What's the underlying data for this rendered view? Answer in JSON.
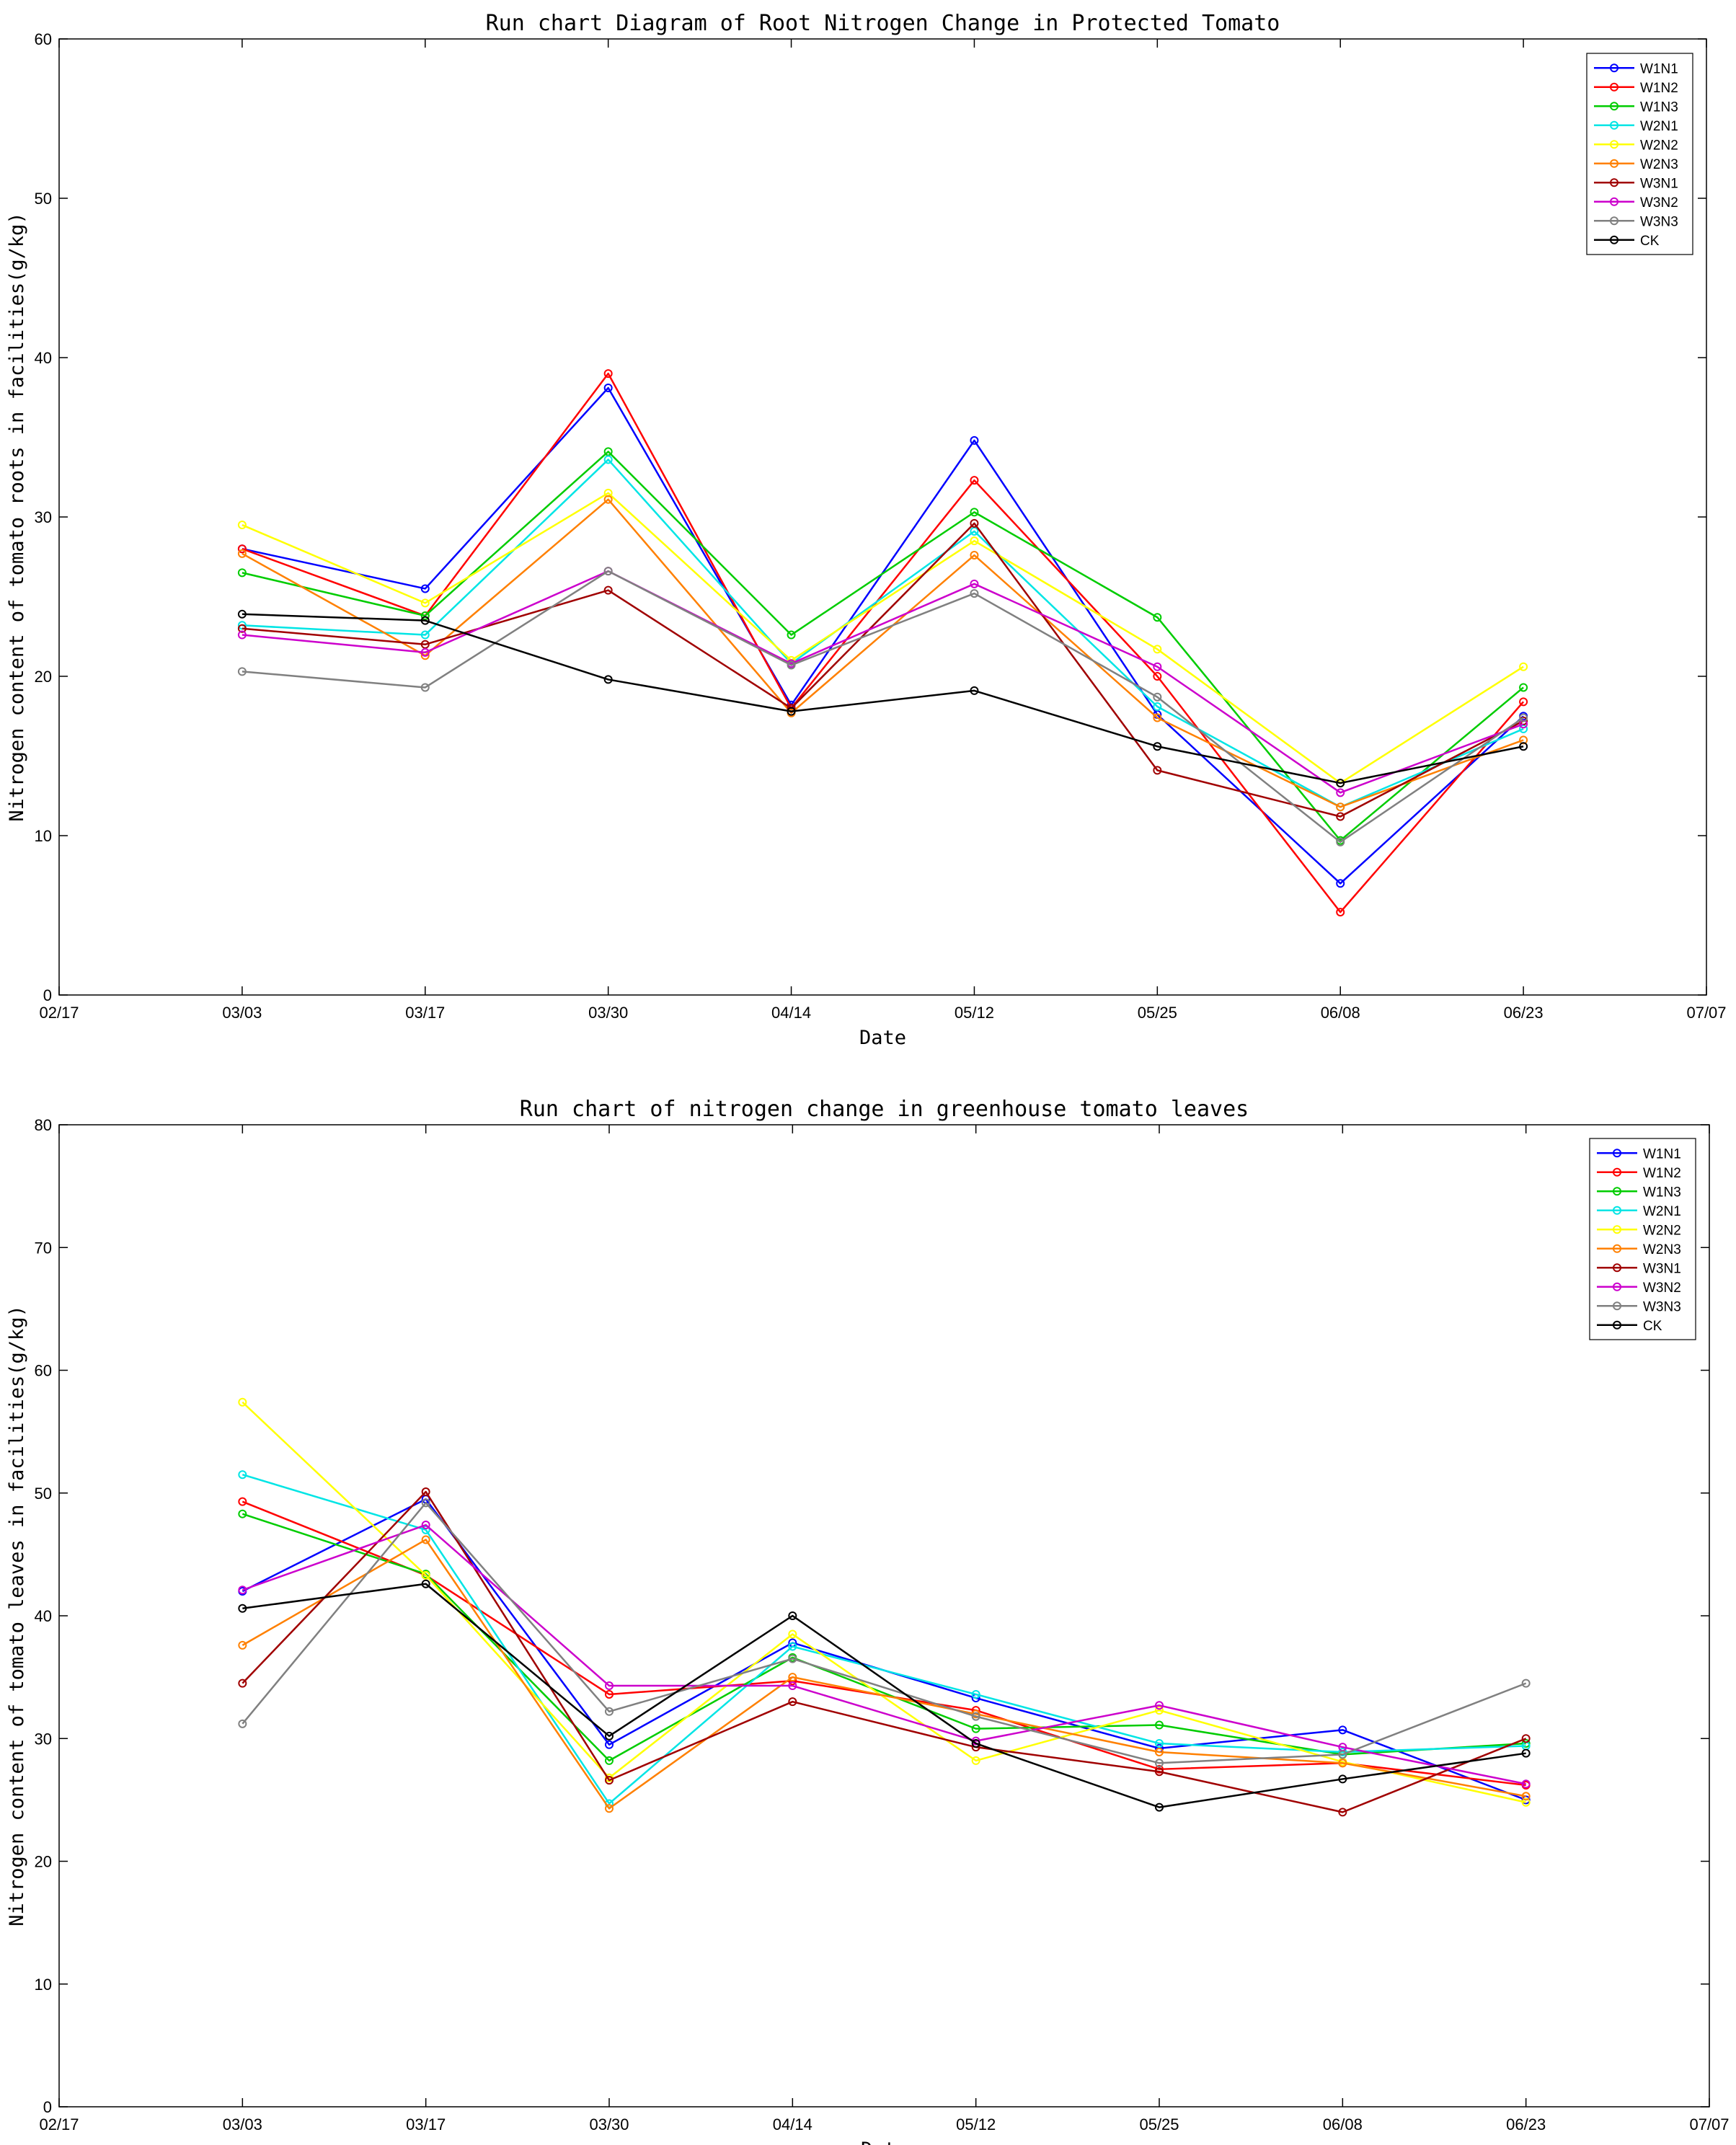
{
  "chart_data": [
    {
      "type": "line",
      "title": "Run chart Diagram of Root Nitrogen Change in Protected Tomato",
      "xlabel": "Date",
      "ylabel": "Nitrogen content of tomato roots in facilities(g/kg)",
      "x_ticks": [
        "02/17",
        "03/03",
        "03/17",
        "03/30",
        "04/14",
        "05/12",
        "05/25",
        "06/08",
        "06/23",
        "07/07"
      ],
      "categories": [
        "03/03",
        "03/17",
        "03/30",
        "04/14",
        "05/12",
        "05/25",
        "06/08",
        "06/23"
      ],
      "ylim": [
        0,
        60
      ],
      "y_ticks": [
        0,
        10,
        20,
        30,
        40,
        50,
        60
      ],
      "legend_position": "top-right",
      "series": [
        {
          "name": "W1N1",
          "color": "#0000FF",
          "values": [
            28.0,
            25.5,
            38.1,
            18.2,
            34.8,
            17.6,
            7.0,
            17.5
          ]
        },
        {
          "name": "W1N2",
          "color": "#FF0000",
          "values": [
            28.0,
            23.8,
            39.0,
            18.0,
            32.3,
            20.0,
            5.2,
            18.4
          ]
        },
        {
          "name": "W1N3",
          "color": "#00CC00",
          "values": [
            26.5,
            23.8,
            34.1,
            22.6,
            30.3,
            23.7,
            9.7,
            19.3
          ]
        },
        {
          "name": "W2N1",
          "color": "#00E5E5",
          "values": [
            23.2,
            22.6,
            33.6,
            20.8,
            29.1,
            18.1,
            11.8,
            16.7
          ]
        },
        {
          "name": "W2N2",
          "color": "#FFFF00",
          "values": [
            29.5,
            24.6,
            31.5,
            21.0,
            28.5,
            21.7,
            13.3,
            20.6
          ]
        },
        {
          "name": "W2N3",
          "color": "#FF8000",
          "values": [
            27.7,
            21.3,
            31.1,
            17.7,
            27.6,
            17.4,
            11.8,
            16.0
          ]
        },
        {
          "name": "W3N1",
          "color": "#A00000",
          "values": [
            23.0,
            22.0,
            25.4,
            18.0,
            29.6,
            14.1,
            11.2,
            17.2
          ]
        },
        {
          "name": "W3N2",
          "color": "#CC00CC",
          "values": [
            22.6,
            21.5,
            26.6,
            20.8,
            25.8,
            20.6,
            12.7,
            17.0
          ]
        },
        {
          "name": "W3N3",
          "color": "#808080",
          "values": [
            20.3,
            19.3,
            26.6,
            20.7,
            25.2,
            18.7,
            9.6,
            17.4
          ]
        },
        {
          "name": "CK",
          "color": "#000000",
          "values": [
            23.9,
            23.5,
            19.8,
            17.8,
            19.1,
            15.6,
            13.3,
            15.6
          ]
        }
      ]
    },
    {
      "type": "line",
      "title": "Run chart of nitrogen change in greenhouse tomato leaves",
      "xlabel": "Date",
      "ylabel": "Nitrogen content of tomato leaves in facilities(g/kg)",
      "x_ticks": [
        "02/17",
        "03/03",
        "03/17",
        "03/30",
        "04/14",
        "05/12",
        "05/25",
        "06/08",
        "06/23",
        "07/07"
      ],
      "categories": [
        "03/03",
        "03/17",
        "03/30",
        "04/14",
        "05/12",
        "05/25",
        "06/08",
        "06/23"
      ],
      "ylim": [
        0,
        80
      ],
      "y_ticks": [
        0,
        10,
        20,
        30,
        40,
        50,
        60,
        70,
        80
      ],
      "legend_position": "top-right",
      "series": [
        {
          "name": "W1N1",
          "color": "#0000FF",
          "values": [
            42.0,
            49.5,
            29.5,
            37.8,
            33.3,
            29.2,
            30.7,
            25.0
          ]
        },
        {
          "name": "W1N2",
          "color": "#FF0000",
          "values": [
            49.3,
            43.3,
            33.6,
            34.7,
            32.3,
            27.5,
            28.0,
            26.2
          ]
        },
        {
          "name": "W1N3",
          "color": "#00CC00",
          "values": [
            48.3,
            43.4,
            28.2,
            36.6,
            30.8,
            31.1,
            28.7,
            29.6
          ]
        },
        {
          "name": "W2N1",
          "color": "#00E5E5",
          "values": [
            51.5,
            47.0,
            24.7,
            37.5,
            33.6,
            29.6,
            28.9,
            29.4
          ]
        },
        {
          "name": "W2N2",
          "color": "#FFFF00",
          "values": [
            57.4,
            43.3,
            26.8,
            38.5,
            28.2,
            32.3,
            28.1,
            24.8
          ]
        },
        {
          "name": "W2N3",
          "color": "#FF8000",
          "values": [
            37.6,
            46.2,
            24.3,
            35.0,
            32.0,
            28.9,
            28.0,
            25.3
          ]
        },
        {
          "name": "W3N1",
          "color": "#A00000",
          "values": [
            34.5,
            50.1,
            26.6,
            33.0,
            29.3,
            27.3,
            24.0,
            30.0
          ]
        },
        {
          "name": "W3N2",
          "color": "#CC00CC",
          "values": [
            42.1,
            47.4,
            34.3,
            34.3,
            29.8,
            32.7,
            29.3,
            26.3
          ]
        },
        {
          "name": "W3N3",
          "color": "#808080",
          "values": [
            31.2,
            49.2,
            32.2,
            36.5,
            31.8,
            28.0,
            28.7,
            34.5
          ]
        },
        {
          "name": "CK",
          "color": "#000000",
          "values": [
            40.6,
            42.6,
            30.2,
            40.0,
            29.6,
            24.4,
            26.7,
            28.8
          ]
        }
      ]
    }
  ]
}
